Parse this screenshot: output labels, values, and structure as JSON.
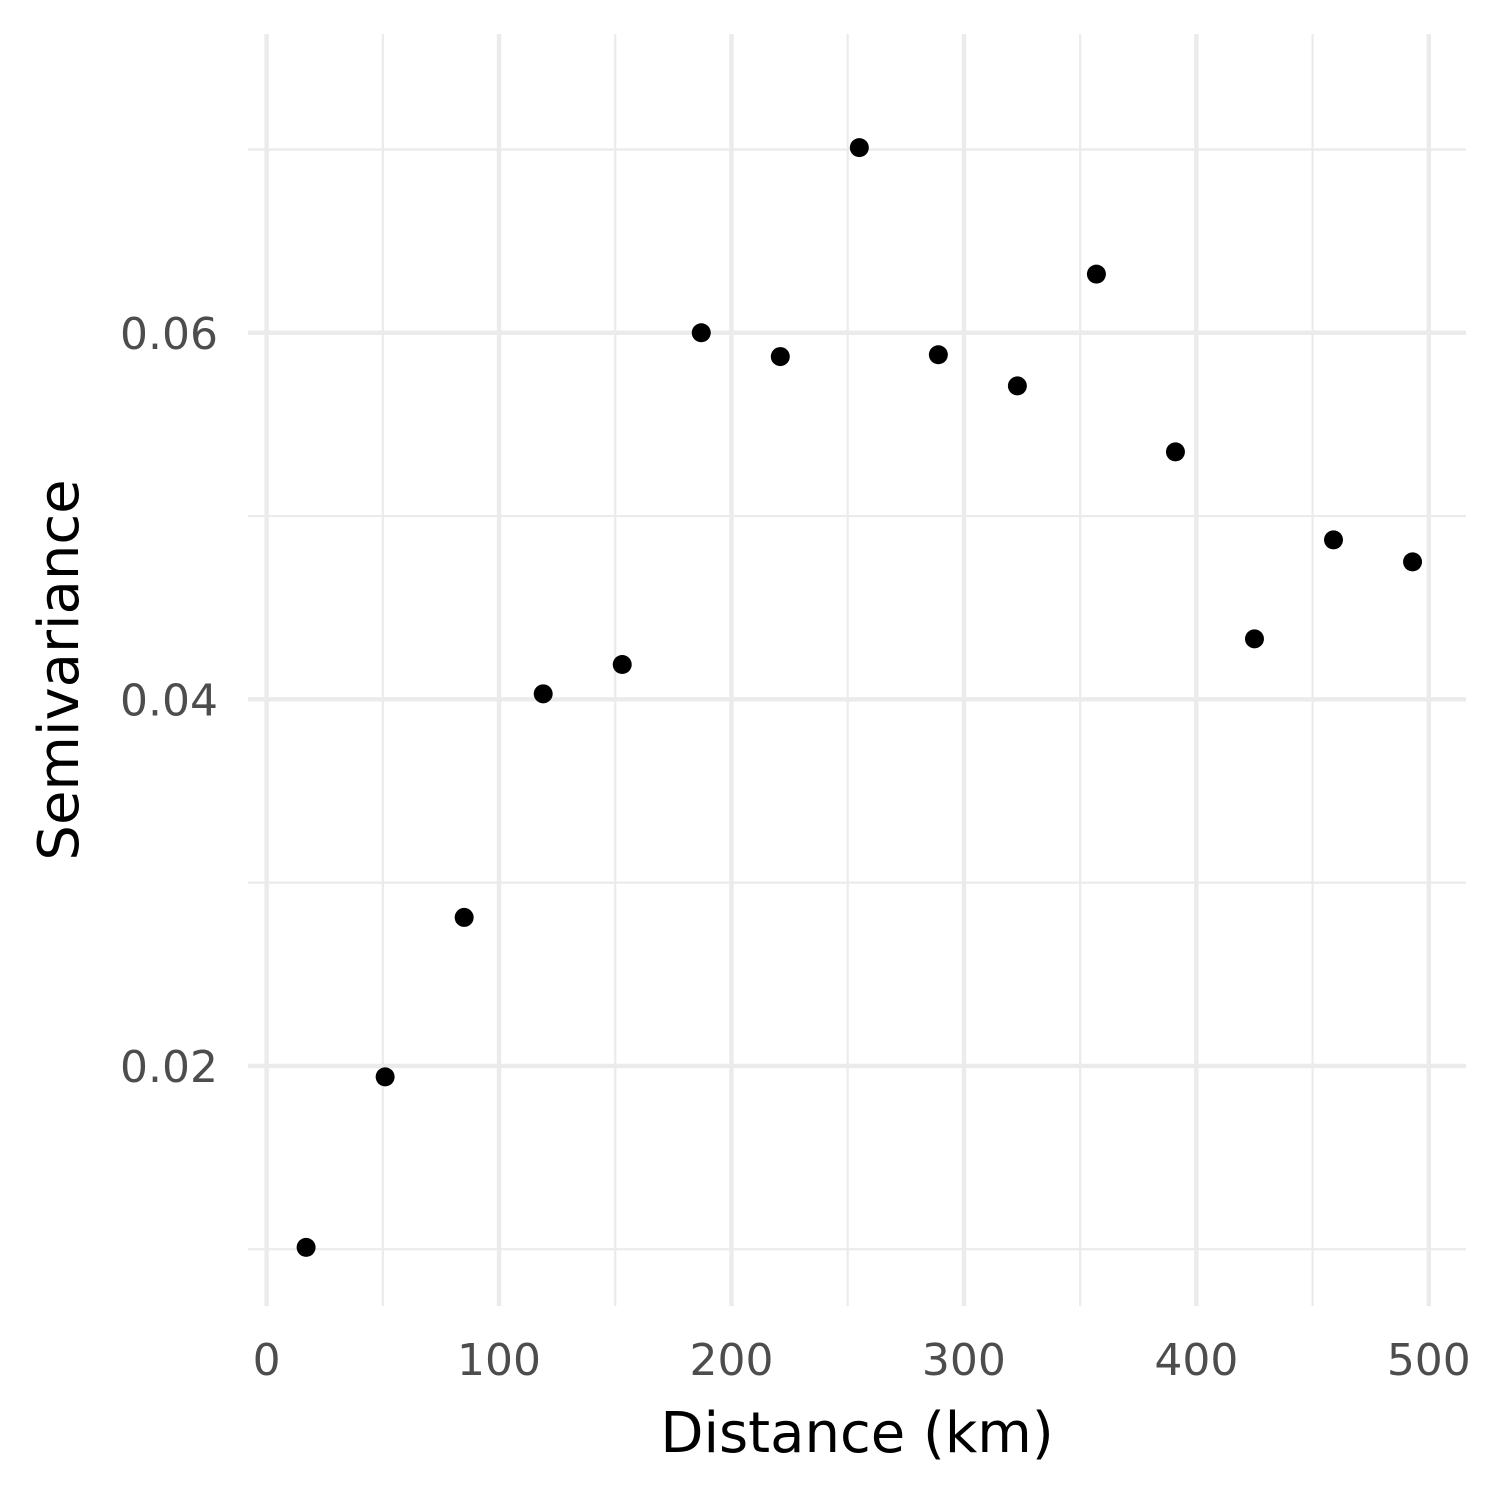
{
  "chart_data": {
    "type": "scatter",
    "title": "",
    "xlabel": "Distance (km)",
    "ylabel": "Semivariance",
    "xlim": [
      -8,
      516
    ],
    "ylim": [
      0.0069,
      0.0763
    ],
    "x_ticks": [
      0,
      100,
      200,
      300,
      400,
      500
    ],
    "x_tick_labels": [
      "0",
      "100",
      "200",
      "300",
      "400",
      "500"
    ],
    "y_ticks": [
      0.02,
      0.04,
      0.06
    ],
    "y_tick_labels": [
      "0.02",
      "0.04",
      "0.06"
    ],
    "x_minor_ticks": [
      50,
      150,
      250,
      350,
      450
    ],
    "y_minor_ticks": [
      0.01,
      0.03,
      0.05,
      0.07
    ],
    "grid": true,
    "legend": "none",
    "point_color": "#000000",
    "grid_color": "#ebebeb",
    "series": [
      {
        "x": [
          17,
          51,
          85,
          119,
          153,
          187,
          221,
          255,
          289,
          323,
          357,
          391,
          425,
          459,
          493
        ],
        "y": [
          0.0101,
          0.0194,
          0.0281,
          0.0403,
          0.0419,
          0.06,
          0.0587,
          0.0701,
          0.0588,
          0.0571,
          0.0632,
          0.0535,
          0.0433,
          0.0487,
          0.0475
        ]
      }
    ]
  }
}
